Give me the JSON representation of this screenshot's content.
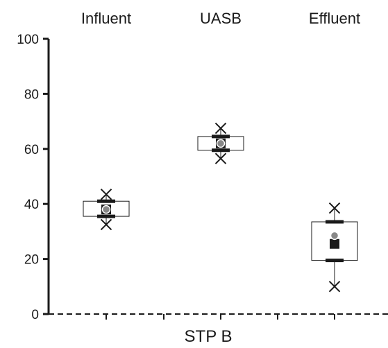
{
  "chart_data": {
    "type": "box",
    "xlabel": "STP B",
    "ylabel": "",
    "ylim": [
      0,
      100
    ],
    "yticks": [
      0,
      20,
      40,
      60,
      80,
      100
    ],
    "grid": false,
    "categories": [
      "Influent",
      "UASB",
      "Effluent"
    ],
    "boxes": [
      {
        "category": "Influent",
        "min": 32.5,
        "p10": 35.5,
        "q1": 35.5,
        "median": 38,
        "q3": 41,
        "p90": 41,
        "max": 43.5,
        "mean": 38
      },
      {
        "category": "UASB",
        "min": 56.5,
        "p10": 59.5,
        "q1": 59.5,
        "median": 62,
        "q3": 64.5,
        "p90": 64.5,
        "max": 67.5,
        "mean": 62
      },
      {
        "category": "Effluent",
        "min": 10,
        "p10": 19.5,
        "q1": 19.5,
        "median": 25.5,
        "q3": 33.5,
        "p90": 33.5,
        "max": 38.5,
        "mean": 28.5
      }
    ],
    "colors": {
      "axis": "#1a1a1a",
      "box_fill": "#ffffff",
      "median": "#1a1a1a",
      "mean": "#888888"
    }
  }
}
